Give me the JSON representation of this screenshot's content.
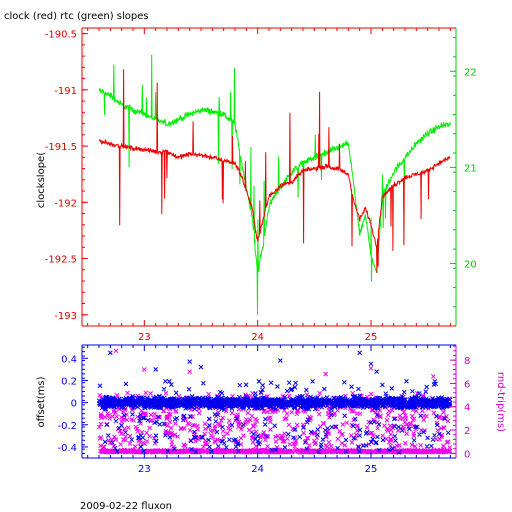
{
  "footer_text": "2009-02-22 fluxon",
  "colors": {
    "clock": "#ee0000",
    "rtc": "#00ee00",
    "offset": "#0000ee",
    "rndtrip": "#ee00ee",
    "axis_left_top": "#ee0000",
    "axis_right_top": "#00cc00",
    "axis_x_top": "#ee0000",
    "axis_left_bottom": "#0000ee",
    "axis_right_bottom": "#cc00cc",
    "axis_x_bottom": "#0000ee"
  },
  "chart_data": [
    {
      "type": "line",
      "title": "clock (red) rtc (green) slopes",
      "ylabel": "clockslope(",
      "xlim": [
        22.45,
        25.75
      ],
      "ylim": [
        -193.1,
        -190.45
      ],
      "y2lim": [
        19.35,
        22.45
      ],
      "x_ticks": [
        23,
        24,
        25
      ],
      "x_tick_labels": [
        "23",
        "24",
        "25"
      ],
      "y_ticks": [
        -190.5,
        -191,
        -191.5,
        -192,
        -192.5,
        -193
      ],
      "y_tick_labels": [
        "-190.5",
        "-191",
        "-191.5",
        "-192",
        "-192.5",
        "-193"
      ],
      "y2_ticks": [
        20,
        21,
        22
      ],
      "y2_tick_labels": [
        "20",
        "21",
        "22"
      ],
      "series": [
        {
          "name": "clock",
          "axis": "left",
          "x": [
            22.6,
            22.7,
            22.8,
            22.9,
            23.0,
            23.1,
            23.2,
            23.3,
            23.4,
            23.5,
            23.6,
            23.7,
            23.8,
            23.85,
            23.9,
            23.95,
            24.0,
            24.05,
            24.1,
            24.2,
            24.3,
            24.4,
            24.5,
            24.6,
            24.7,
            24.8,
            24.85,
            24.9,
            24.95,
            25.0,
            25.05,
            25.1,
            25.2,
            25.3,
            25.4,
            25.5,
            25.6,
            25.7
          ],
          "y": [
            -191.45,
            -191.48,
            -191.5,
            -191.52,
            -191.53,
            -191.55,
            -191.55,
            -191.6,
            -191.57,
            -191.58,
            -191.6,
            -191.63,
            -191.65,
            -191.75,
            -191.9,
            -192.05,
            -192.35,
            -192.15,
            -191.95,
            -191.85,
            -191.82,
            -191.72,
            -191.7,
            -191.68,
            -191.7,
            -191.75,
            -192.0,
            -192.15,
            -192.05,
            -192.2,
            -192.4,
            -191.95,
            -191.85,
            -191.78,
            -191.75,
            -191.72,
            -191.65,
            -191.6
          ]
        },
        {
          "name": "rtc",
          "axis": "right",
          "x": [
            22.6,
            22.7,
            22.8,
            22.9,
            23.0,
            23.1,
            23.2,
            23.3,
            23.4,
            23.5,
            23.6,
            23.7,
            23.8,
            23.85,
            23.9,
            23.95,
            24.0,
            24.05,
            24.1,
            24.2,
            24.3,
            24.4,
            24.5,
            24.6,
            24.7,
            24.8,
            24.85,
            24.9,
            24.95,
            25.0,
            25.05,
            25.1,
            25.2,
            25.3,
            25.4,
            25.5,
            25.6,
            25.7
          ],
          "y": [
            21.8,
            21.75,
            21.65,
            21.6,
            21.55,
            21.5,
            21.45,
            21.5,
            21.55,
            21.6,
            21.58,
            21.55,
            21.45,
            21.1,
            20.8,
            20.5,
            19.9,
            20.2,
            20.6,
            20.8,
            20.95,
            21.05,
            21.1,
            21.15,
            21.2,
            21.25,
            20.8,
            20.3,
            20.5,
            20.1,
            19.9,
            20.7,
            20.95,
            21.1,
            21.25,
            21.35,
            21.42,
            21.45
          ]
        }
      ]
    },
    {
      "type": "scatter",
      "ylabel": "offset(ms)",
      "y2label": "rnd-trip(ms)",
      "xlim": [
        22.45,
        25.75
      ],
      "ylim": [
        -0.5,
        0.52
      ],
      "y2lim": [
        -0.4,
        9.3
      ],
      "x_ticks": [
        23,
        24,
        25
      ],
      "x_tick_labels": [
        "23",
        "24",
        "25"
      ],
      "y_ticks": [
        0.4,
        0.2,
        0,
        -0.2,
        -0.4
      ],
      "y_tick_labels": [
        "0.4",
        "0.2",
        "0",
        "-0.2",
        "-0.4"
      ],
      "y2_ticks": [
        8,
        6,
        4,
        2,
        0
      ],
      "y2_tick_labels": [
        "8",
        "6",
        "4",
        "2",
        "0"
      ],
      "series": [
        {
          "name": "offset",
          "axis": "left",
          "x": [
            22.7,
            23.1,
            23.4,
            23.5,
            24.2,
            24.9,
            25.0,
            25.05
          ],
          "y": [
            0.45,
            0.3,
            0.37,
            0.32,
            0.38,
            0.45,
            0.35,
            0.28
          ]
        },
        {
          "name": "rnd-trip",
          "axis": "right",
          "x": [
            22.75,
            23.0,
            23.4,
            24.6,
            25.0,
            25.55
          ],
          "y": [
            8.8,
            7.2,
            7.0,
            6.8,
            7.3,
            6.6
          ]
        }
      ]
    }
  ]
}
